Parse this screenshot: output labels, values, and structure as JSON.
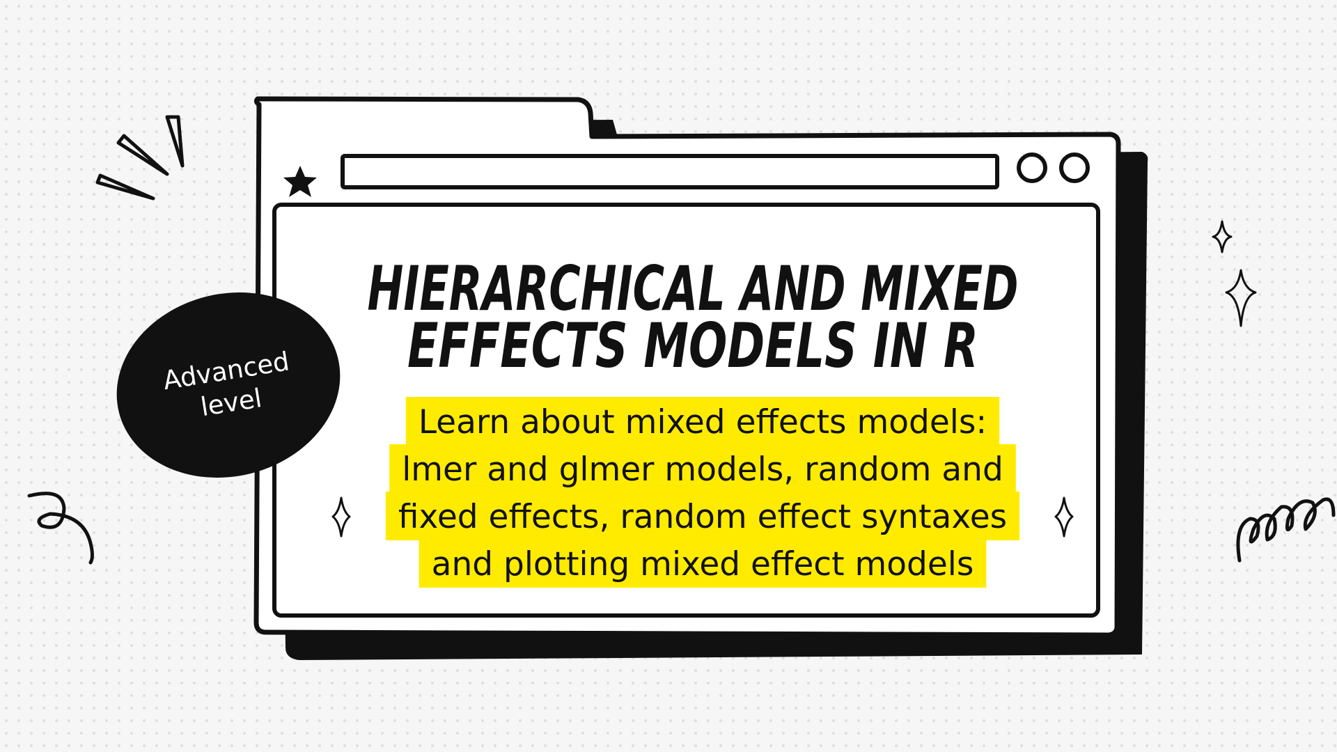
{
  "badge": {
    "lines": [
      "Advanced",
      "level"
    ]
  },
  "title": {
    "lines": [
      "HIERARCHICAL AND MIXED",
      "EFFECTS MODELS IN R"
    ]
  },
  "subtitle": {
    "lines": [
      "Learn about mixed effects models:",
      "lmer and glmer models, random and",
      "fixed effects, random effect syntaxes",
      "and plotting mixed effect models"
    ]
  }
}
